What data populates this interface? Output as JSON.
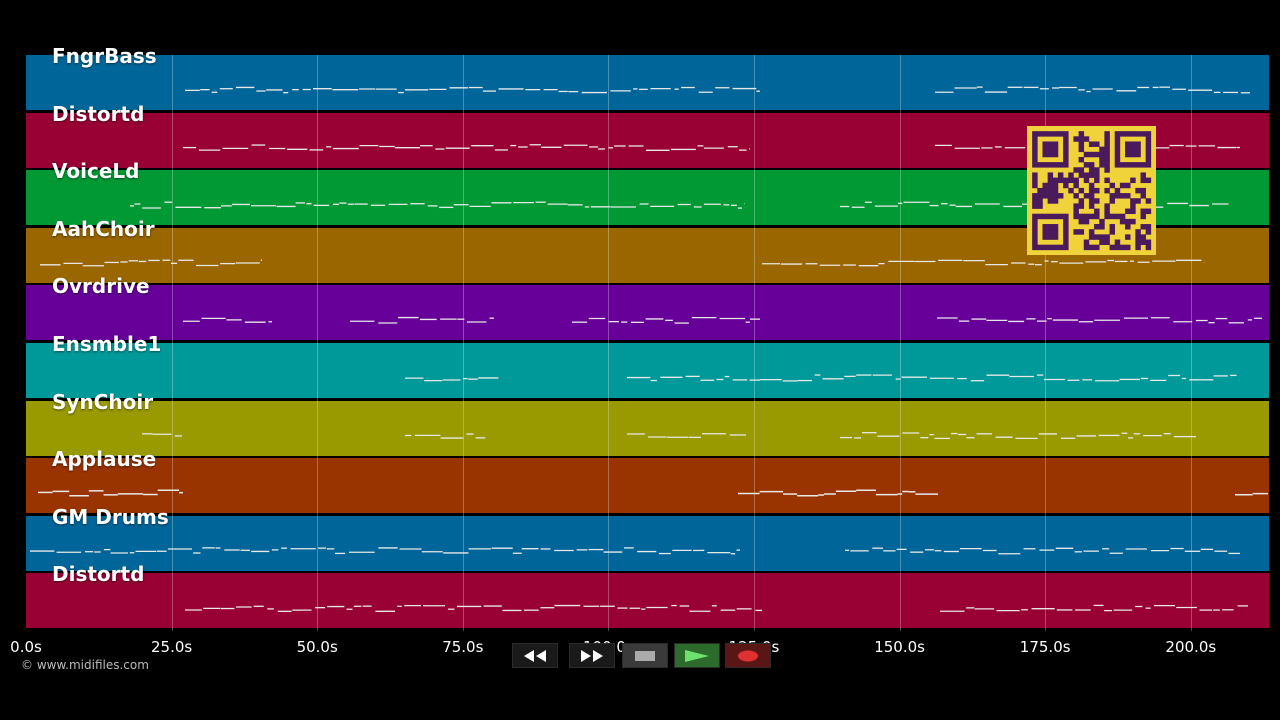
{
  "tracks": [
    {
      "name": "FngrBass",
      "color": "#006699"
    },
    {
      "name": "Distortd",
      "color": "#990033"
    },
    {
      "name": "VoiceLd",
      "color": "#009933"
    },
    {
      "name": "AahChoir",
      "color": "#996600"
    },
    {
      "name": "Ovrdrive",
      "color": "#660099"
    },
    {
      "name": "Ensmble1",
      "color": "#009999"
    },
    {
      "name": "SynChoir",
      "color": "#999900"
    },
    {
      "name": "Applause",
      "color": "#993300"
    },
    {
      "name": "GM Drums",
      "color": "#006699"
    },
    {
      "name": "Distortd",
      "color": "#990033"
    }
  ],
  "timeline": {
    "ticks": [
      "0.0s",
      "25.0s",
      "50.0s",
      "75.0s",
      "100.0s",
      "125.0s",
      "150.0s",
      "175.0s",
      "200.0s"
    ]
  },
  "transport": {
    "buttons": [
      {
        "name": "rewind-button",
        "icon": "rewind-icon"
      },
      {
        "name": "fast-forward-button",
        "icon": "fast-forward-icon"
      },
      {
        "name": "stop-button",
        "icon": "stop-icon"
      },
      {
        "name": "play-button",
        "icon": "play-icon"
      },
      {
        "name": "record-button",
        "icon": "record-icon"
      }
    ]
  },
  "copyright": "© www.midifiles.com",
  "qr_code": {
    "icon": "qr-code-icon",
    "color": "#f0d23a",
    "ink": "#4a1a5c"
  }
}
